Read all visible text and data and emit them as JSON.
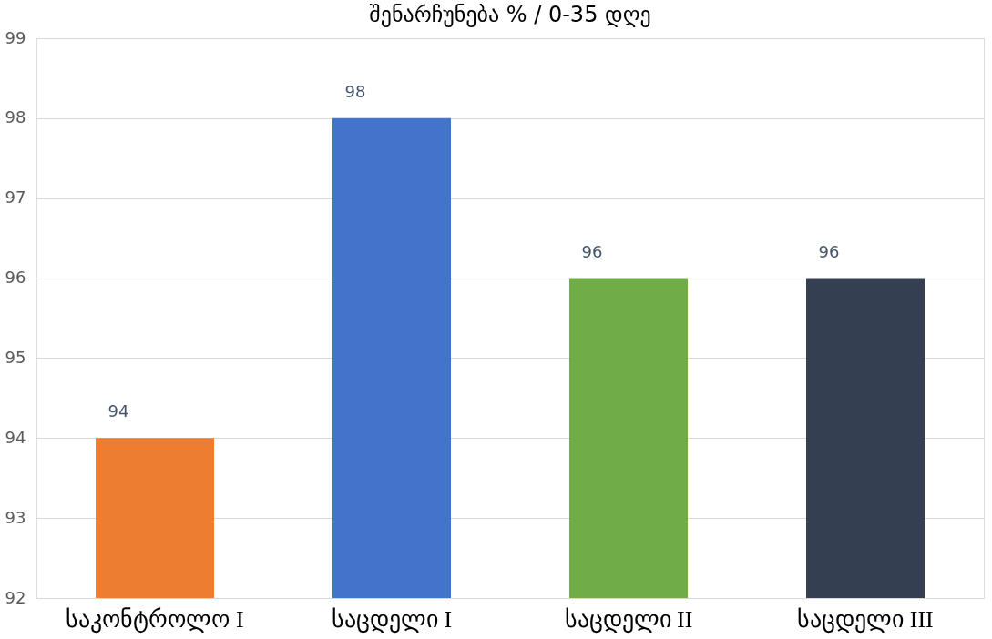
{
  "chart_data": {
    "type": "bar",
    "title": "შენარჩუნება % / 0-35 დღე",
    "categories": [
      "საკონტროლო I",
      "საცდელი I",
      "საცდელი II",
      "საცდელი III"
    ],
    "values": [
      94,
      98,
      96,
      96
    ],
    "colors": [
      "#ed7d31",
      "#4274cc",
      "#70ad47",
      "#353f52"
    ],
    "ylim": [
      92,
      99
    ],
    "yticks": [
      92,
      93,
      94,
      95,
      96,
      97,
      98,
      99
    ],
    "grid": "y",
    "data_labels": true
  }
}
